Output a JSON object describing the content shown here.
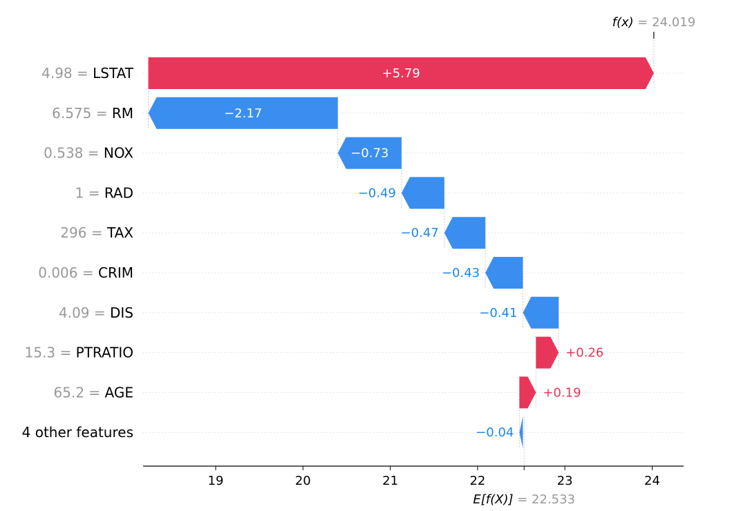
{
  "chart_data": {
    "type": "waterfall",
    "base_value": {
      "label_expr": "E[f(X)]",
      "sep": " = ",
      "value_text": "22.533",
      "value": 22.533
    },
    "output_value": {
      "label_expr": "f(x)",
      "sep": " = ",
      "value_text": "24.019",
      "value": 24.019
    },
    "features": [
      {
        "value": "4.98",
        "eq": " = ",
        "name": "LSTAT",
        "shap": 5.79,
        "label": "+5.79"
      },
      {
        "value": "6.575",
        "eq": " = ",
        "name": "RM",
        "shap": -2.17,
        "label": "−2.17"
      },
      {
        "value": "0.538",
        "eq": " = ",
        "name": "NOX",
        "shap": -0.73,
        "label": "−0.73"
      },
      {
        "value": "1",
        "eq": " = ",
        "name": "RAD",
        "shap": -0.49,
        "label": "−0.49"
      },
      {
        "value": "296",
        "eq": " = ",
        "name": "TAX",
        "shap": -0.47,
        "label": "−0.47"
      },
      {
        "value": "0.006",
        "eq": " = ",
        "name": "CRIM",
        "shap": -0.43,
        "label": "−0.43"
      },
      {
        "value": "4.09",
        "eq": " = ",
        "name": "DIS",
        "shap": -0.41,
        "label": "−0.41"
      },
      {
        "value": "15.3",
        "eq": " = ",
        "name": "PTRATIO",
        "shap": 0.26,
        "label": "+0.26"
      },
      {
        "value": "65.2",
        "eq": " = ",
        "name": "AGE",
        "shap": 0.19,
        "label": "+0.19"
      },
      {
        "value": "",
        "eq": "",
        "name": "4 other features",
        "shap": -0.04,
        "label": "−0.04"
      }
    ],
    "xticks": [
      19,
      20,
      21,
      22,
      23,
      24
    ],
    "xlim": [
      18.2,
      24.4
    ],
    "grid": "horizontal dotted row lines",
    "colors": {
      "positive": "#ff0051",
      "positive_bar": "#e8355a",
      "negative": "#1e88e5",
      "negative_bar": "#3a8ef0",
      "axis_text": "#000000",
      "muted": "#999999"
    }
  }
}
